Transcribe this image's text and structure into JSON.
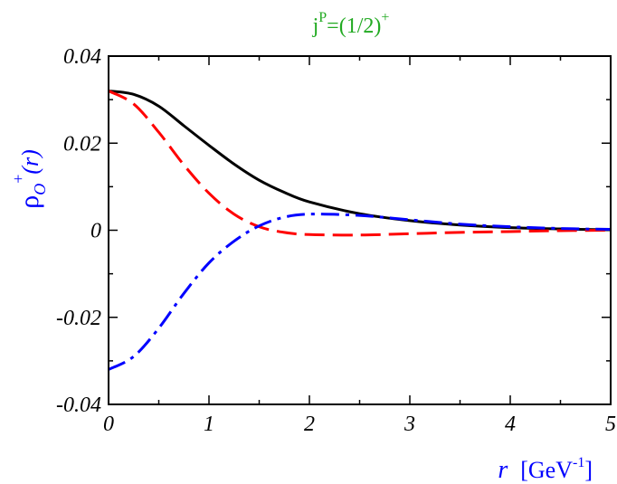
{
  "chart_data": {
    "type": "line",
    "title": {
      "base": "j",
      "sup1": "P",
      "middle": "=(1/2)",
      "sup2": "+",
      "color": "#22aa22"
    },
    "xlabel": {
      "var": "r",
      "unit_open": "[GeV",
      "unit_sup": "-1",
      "unit_close": "]",
      "color": "#0000ff"
    },
    "ylabel": {
      "base": "ρ",
      "sub": "O",
      "sup": "+",
      "arg": "(r)",
      "color": "#0000ff"
    },
    "xlim": [
      0,
      5
    ],
    "ylim": [
      -0.04,
      0.04
    ],
    "xticks": [
      0,
      1,
      2,
      3,
      4,
      5
    ],
    "xtick_labels": [
      "0",
      "1",
      "2",
      "3",
      "4",
      "5"
    ],
    "yticks": [
      -0.04,
      -0.02,
      0,
      0.02,
      0.04
    ],
    "ytick_labels": [
      "-0.04",
      "-0.02",
      "0",
      "0.02",
      "0.04"
    ],
    "grid": false,
    "series": [
      {
        "style": "solid",
        "color": "#000000",
        "x": [
          0,
          0.25,
          0.5,
          0.75,
          1.0,
          1.25,
          1.5,
          1.75,
          2.0,
          2.5,
          3.0,
          3.5,
          4.0,
          4.5,
          5.0
        ],
        "y": [
          0.032,
          0.0312,
          0.0285,
          0.024,
          0.0195,
          0.0152,
          0.0115,
          0.0087,
          0.0065,
          0.0038,
          0.0022,
          0.0012,
          0.0006,
          0.0003,
          0.0001
        ]
      },
      {
        "style": "dashed",
        "color": "#ff0000",
        "x": [
          0,
          0.25,
          0.5,
          0.75,
          1.0,
          1.25,
          1.5,
          1.75,
          2.0,
          2.5,
          3.0,
          3.5,
          4.0,
          4.5,
          5.0
        ],
        "y": [
          0.032,
          0.029,
          0.0225,
          0.015,
          0.0085,
          0.0037,
          0.0008,
          -0.0005,
          -0.001,
          -0.0011,
          -0.0008,
          -0.0005,
          -0.0003,
          -0.0001,
          0.0
        ]
      },
      {
        "style": "dash-dot",
        "color": "#0000ff",
        "x": [
          0,
          0.25,
          0.5,
          0.75,
          1.0,
          1.25,
          1.5,
          1.75,
          2.0,
          2.5,
          3.0,
          3.5,
          4.0,
          4.5,
          5.0
        ],
        "y": [
          -0.032,
          -0.029,
          -0.0225,
          -0.0145,
          -0.0075,
          -0.0025,
          0.001,
          0.003,
          0.0037,
          0.0034,
          0.0024,
          0.0014,
          0.0008,
          0.0004,
          0.0002
        ]
      }
    ]
  }
}
